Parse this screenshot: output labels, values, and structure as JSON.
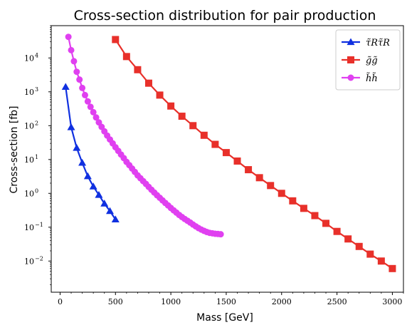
{
  "chart_data": {
    "type": "line",
    "title": "Cross-section distribution for pair production",
    "xlabel": "Mass [GeV]",
    "ylabel": "Cross-section [fb]",
    "xlim": [
      -80,
      3100
    ],
    "ylim": [
      0.0012,
      90000
    ],
    "yscale": "log",
    "x_ticks": [
      0,
      500,
      1000,
      1500,
      2000,
      2500,
      3000
    ],
    "y_tick_labels": [
      {
        "base": "10",
        "exp": "−2",
        "value": 0.01
      },
      {
        "base": "10",
        "exp": "−1",
        "value": 0.1
      },
      {
        "base": "10",
        "exp": "0",
        "value": 1
      },
      {
        "base": "10",
        "exp": "1",
        "value": 10
      },
      {
        "base": "10",
        "exp": "2",
        "value": 100
      },
      {
        "base": "10",
        "exp": "3",
        "value": 1000
      },
      {
        "base": "10",
        "exp": "4",
        "value": 10000
      }
    ],
    "legend_position": "top-right",
    "series": [
      {
        "name": "τ̃Rτ̃R",
        "marker": "triangle",
        "color": "#1030e0",
        "x": [
          50,
          100,
          150,
          200,
          250,
          300,
          350,
          400,
          450,
          500
        ],
        "y": [
          1400,
          90,
          22,
          8,
          3.2,
          1.6,
          0.9,
          0.5,
          0.3,
          0.17
        ]
      },
      {
        "name": "g̃g̃",
        "marker": "square",
        "color": "#e8302a",
        "x": [
          500,
          600,
          700,
          800,
          900,
          1000,
          1100,
          1200,
          1300,
          1400,
          1500,
          1600,
          1700,
          1800,
          1900,
          2000,
          2100,
          2200,
          2300,
          2400,
          2500,
          2600,
          2700,
          2800,
          2900,
          3000
        ],
        "y": [
          35000,
          11000,
          4500,
          1800,
          800,
          380,
          190,
          100,
          52,
          28,
          16,
          9,
          5,
          2.9,
          1.7,
          1.0,
          0.6,
          0.36,
          0.22,
          0.13,
          0.075,
          0.045,
          0.027,
          0.016,
          0.01,
          0.006
        ]
      },
      {
        "name": "h̃h̃",
        "marker": "circle",
        "color": "#e040f0",
        "x": [
          75,
          100,
          125,
          150,
          175,
          200,
          225,
          250,
          275,
          300,
          325,
          350,
          375,
          400,
          425,
          450,
          475,
          500,
          525,
          550,
          575,
          600,
          625,
          650,
          675,
          700,
          725,
          750,
          775,
          800,
          825,
          850,
          875,
          900,
          925,
          950,
          975,
          1000,
          1025,
          1050,
          1075,
          1100,
          1125,
          1150,
          1175,
          1200,
          1225,
          1250,
          1275,
          1300,
          1325,
          1350,
          1375,
          1400,
          1425,
          1450
        ],
        "y": [
          42000,
          17000,
          8000,
          3900,
          2300,
          1300,
          800,
          520,
          360,
          250,
          175,
          125,
          92,
          68,
          51,
          39,
          30,
          23,
          18,
          14,
          11,
          8.5,
          6.8,
          5.4,
          4.3,
          3.4,
          2.8,
          2.3,
          1.9,
          1.55,
          1.28,
          1.06,
          0.88,
          0.74,
          0.62,
          0.52,
          0.44,
          0.37,
          0.315,
          0.27,
          0.23,
          0.2,
          0.175,
          0.155,
          0.137,
          0.12,
          0.106,
          0.094,
          0.085,
          0.078,
          0.072,
          0.068,
          0.066,
          0.064,
          0.063,
          0.062
        ]
      }
    ]
  }
}
